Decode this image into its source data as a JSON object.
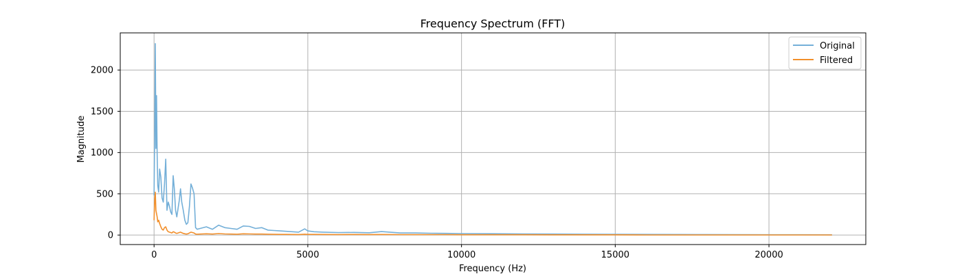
{
  "chart_data": {
    "type": "line",
    "title": "Frequency Spectrum (FFT)",
    "xlabel": "Frequency (Hz)",
    "ylabel": "Magnitude",
    "xlim": [
      -1100,
      23150
    ],
    "ylim": [
      -115,
      2450
    ],
    "xticks": [
      0,
      5000,
      10000,
      15000,
      20000
    ],
    "xtick_labels": [
      "0",
      "5000",
      "10000",
      "15000",
      "20000"
    ],
    "yticks": [
      0,
      500,
      1000,
      1500,
      2000
    ],
    "ytick_labels": [
      "0",
      "500",
      "1000",
      "1500",
      "2000"
    ],
    "grid": true,
    "legend": {
      "placement": "upper-right"
    },
    "series": [
      {
        "name": "Original",
        "color": "#73afd8",
        "x": [
          0,
          20,
          40,
          60,
          80,
          100,
          120,
          150,
          180,
          220,
          260,
          300,
          340,
          380,
          420,
          460,
          500,
          540,
          580,
          620,
          660,
          700,
          740,
          780,
          820,
          860,
          900,
          950,
          1000,
          1050,
          1100,
          1150,
          1200,
          1250,
          1300,
          1350,
          1400,
          1500,
          1700,
          1900,
          2100,
          2300,
          2500,
          2700,
          2900,
          3100,
          3300,
          3500,
          3700,
          3900,
          4100,
          4300,
          4500,
          4700,
          4900,
          5000,
          5200,
          5500,
          6000,
          6500,
          7000,
          7400,
          8000,
          8500,
          9000,
          9500,
          10000,
          11000,
          12000,
          13000,
          14000,
          15000,
          16000,
          17000,
          18000,
          19000,
          20000,
          21000,
          22050
        ],
        "y": [
          480,
          1200,
          2320,
          1050,
          1690,
          980,
          600,
          520,
          800,
          700,
          450,
          400,
          620,
          920,
          300,
          400,
          350,
          280,
          250,
          720,
          560,
          300,
          220,
          320,
          420,
          560,
          400,
          300,
          180,
          130,
          150,
          350,
          620,
          570,
          500,
          90,
          70,
          80,
          100,
          70,
          120,
          90,
          80,
          70,
          110,
          105,
          80,
          90,
          60,
          55,
          50,
          45,
          40,
          35,
          75,
          50,
          40,
          35,
          30,
          32,
          28,
          42,
          25,
          25,
          22,
          20,
          18,
          16,
          14,
          12,
          10,
          9,
          8,
          7,
          6,
          5,
          4,
          4,
          3
        ]
      },
      {
        "name": "Filtered",
        "color": "#f28f2a",
        "x": [
          0,
          20,
          40,
          60,
          80,
          100,
          120,
          150,
          180,
          220,
          260,
          300,
          340,
          380,
          420,
          460,
          500,
          540,
          580,
          620,
          660,
          700,
          740,
          780,
          820,
          860,
          900,
          950,
          1000,
          1050,
          1100,
          1150,
          1200,
          1250,
          1300,
          1350,
          1400,
          1500,
          1700,
          1900,
          2100,
          2300,
          2500,
          2700,
          2900,
          3100,
          3300,
          3500,
          3700,
          3900,
          4100,
          4300,
          4500,
          4700,
          4900,
          5000,
          5200,
          5500,
          6000,
          6500,
          7000,
          7400,
          8000,
          8500,
          9000,
          9500,
          10000,
          11000,
          12000,
          13000,
          14000,
          15000,
          15700,
          16000,
          17000,
          18000,
          19000,
          20000,
          21000,
          22050
        ],
        "y": [
          180,
          420,
          520,
          300,
          260,
          220,
          160,
          180,
          140,
          100,
          70,
          60,
          90,
          100,
          60,
          40,
          35,
          30,
          25,
          40,
          35,
          25,
          20,
          25,
          30,
          35,
          28,
          20,
          15,
          12,
          15,
          25,
          35,
          30,
          25,
          12,
          10,
          12,
          15,
          12,
          18,
          14,
          12,
          10,
          15,
          14,
          12,
          12,
          10,
          9,
          8,
          8,
          7,
          6,
          10,
          8,
          8,
          7,
          6,
          7,
          6,
          7,
          5,
          5,
          5,
          5,
          4,
          4,
          4,
          3,
          3,
          3,
          2,
          1,
          1,
          1,
          1,
          1,
          1,
          1
        ]
      }
    ]
  }
}
